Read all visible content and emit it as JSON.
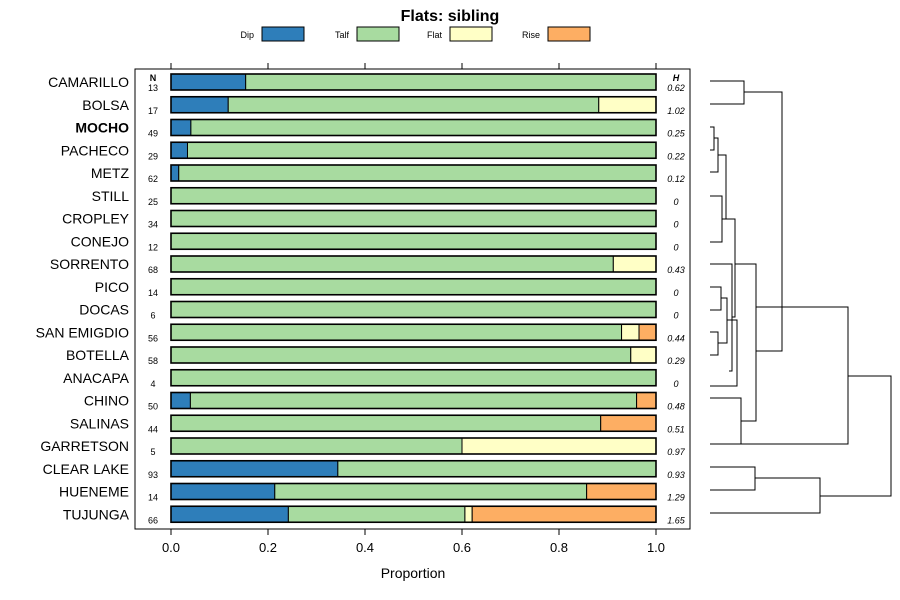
{
  "chart_data": {
    "type": "bar",
    "orientation": "horizontal",
    "stacked": true,
    "title": "Flats: sibling",
    "xlabel": "Proportion",
    "ylabel": "",
    "xlim": [
      0,
      1
    ],
    "xticks": [
      "0.0",
      "0.2",
      "0.4",
      "0.6",
      "0.8",
      "1.0"
    ],
    "n_header": "N",
    "h_header": "H",
    "legend_position": "top",
    "series": [
      {
        "name": "Dip",
        "color": "#2e7eba"
      },
      {
        "name": "Talf",
        "color": "#a8dba0"
      },
      {
        "name": "Flat",
        "color": "#ffffc6"
      },
      {
        "name": "Rise",
        "color": "#fdae63"
      }
    ],
    "rows": [
      {
        "label": "CAMARILLO",
        "n": "13",
        "h": "0.62",
        "bold": false,
        "values": [
          0.154,
          0.846,
          0,
          0
        ]
      },
      {
        "label": "BOLSA",
        "n": "17",
        "h": "1.02",
        "bold": false,
        "values": [
          0.118,
          0.764,
          0.118,
          0
        ]
      },
      {
        "label": "MOCHO",
        "n": "49",
        "h": "0.25",
        "bold": true,
        "values": [
          0.041,
          0.959,
          0,
          0
        ]
      },
      {
        "label": "PACHECO",
        "n": "29",
        "h": "0.22",
        "bold": false,
        "values": [
          0.034,
          0.966,
          0,
          0
        ]
      },
      {
        "label": "METZ",
        "n": "62",
        "h": "0.12",
        "bold": false,
        "values": [
          0.016,
          0.984,
          0,
          0
        ]
      },
      {
        "label": "STILL",
        "n": "25",
        "h": "0",
        "bold": false,
        "values": [
          0,
          1,
          0,
          0
        ]
      },
      {
        "label": "CROPLEY",
        "n": "34",
        "h": "0",
        "bold": false,
        "values": [
          0,
          1,
          0,
          0
        ]
      },
      {
        "label": "CONEJO",
        "n": "12",
        "h": "0",
        "bold": false,
        "values": [
          0,
          1,
          0,
          0
        ]
      },
      {
        "label": "SORRENTO",
        "n": "68",
        "h": "0.43",
        "bold": false,
        "values": [
          0,
          0.912,
          0.088,
          0
        ]
      },
      {
        "label": "PICO",
        "n": "14",
        "h": "0",
        "bold": false,
        "values": [
          0,
          1,
          0,
          0
        ]
      },
      {
        "label": "DOCAS",
        "n": "6",
        "h": "0",
        "bold": false,
        "values": [
          0,
          1,
          0,
          0
        ]
      },
      {
        "label": "SAN EMIGDIO",
        "n": "56",
        "h": "0.44",
        "bold": false,
        "values": [
          0,
          0.929,
          0.036,
          0.035
        ]
      },
      {
        "label": "BOTELLA",
        "n": "58",
        "h": "0.29",
        "bold": false,
        "values": [
          0,
          0.948,
          0.052,
          0
        ]
      },
      {
        "label": "ANACAPA",
        "n": "4",
        "h": "0",
        "bold": false,
        "values": [
          0,
          1,
          0,
          0
        ]
      },
      {
        "label": "CHINO",
        "n": "50",
        "h": "0.48",
        "bold": false,
        "values": [
          0.04,
          0.92,
          0,
          0.04
        ]
      },
      {
        "label": "SALINAS",
        "n": "44",
        "h": "0.51",
        "bold": false,
        "values": [
          0,
          0.886,
          0,
          0.114
        ]
      },
      {
        "label": "GARRETSON",
        "n": "5",
        "h": "0.97",
        "bold": false,
        "values": [
          0,
          0.6,
          0.4,
          0
        ]
      },
      {
        "label": "CLEAR LAKE",
        "n": "93",
        "h": "0.93",
        "bold": false,
        "values": [
          0.344,
          0.656,
          0,
          0
        ]
      },
      {
        "label": "HUENEME",
        "n": "14",
        "h": "1.29",
        "bold": false,
        "values": [
          0.214,
          0.643,
          0,
          0.143
        ]
      },
      {
        "label": "TUJUNGA",
        "n": "66",
        "h": "1.65",
        "bold": false,
        "values": [
          0.242,
          0.364,
          0.015,
          0.379
        ]
      }
    ]
  }
}
